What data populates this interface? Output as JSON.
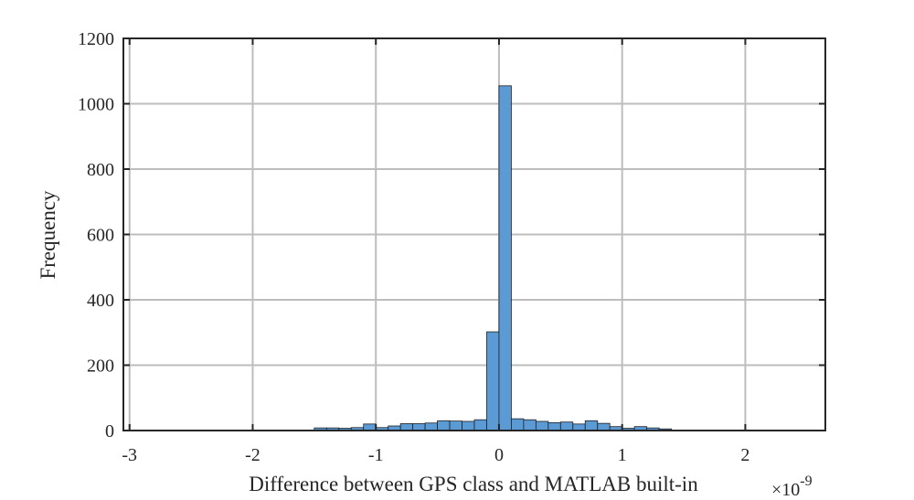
{
  "chart_data": {
    "type": "bar",
    "title": "",
    "xlabel": "Difference between GPS class and MATLAB built-in",
    "ylabel": "Frequency",
    "x_exponent_base": "×10",
    "x_exponent_power": "-9",
    "xlim": [
      -3.05,
      2.65
    ],
    "ylim": [
      0,
      1200
    ],
    "grid": true,
    "legend": "none",
    "bar_color": "#5B9BD5",
    "bar_edge_color": "#1f1f1f",
    "bin_width": 0.1,
    "x_ticks": [
      -3,
      -2,
      -1,
      0,
      1,
      2
    ],
    "x_tick_labels": [
      "-3",
      "-2",
      "-1",
      "0",
      "1",
      "2"
    ],
    "y_ticks": [
      0,
      200,
      400,
      600,
      800,
      1000,
      1200
    ],
    "y_tick_labels": [
      "0",
      "200",
      "400",
      "600",
      "800",
      "1000",
      "1200"
    ],
    "bins": [
      {
        "start": -1.5,
        "value": 8
      },
      {
        "start": -1.4,
        "value": 8
      },
      {
        "start": -1.3,
        "value": 7
      },
      {
        "start": -1.2,
        "value": 9
      },
      {
        "start": -1.1,
        "value": 20
      },
      {
        "start": -1.0,
        "value": 9
      },
      {
        "start": -0.9,
        "value": 14
      },
      {
        "start": -0.8,
        "value": 21
      },
      {
        "start": -0.7,
        "value": 21
      },
      {
        "start": -0.6,
        "value": 23
      },
      {
        "start": -0.5,
        "value": 30
      },
      {
        "start": -0.4,
        "value": 29
      },
      {
        "start": -0.3,
        "value": 28
      },
      {
        "start": -0.2,
        "value": 33
      },
      {
        "start": -0.1,
        "value": 302
      },
      {
        "start": 0.0,
        "value": 1055
      },
      {
        "start": 0.1,
        "value": 36
      },
      {
        "start": 0.2,
        "value": 33
      },
      {
        "start": 0.3,
        "value": 28
      },
      {
        "start": 0.4,
        "value": 24
      },
      {
        "start": 0.5,
        "value": 26
      },
      {
        "start": 0.6,
        "value": 20
      },
      {
        "start": 0.7,
        "value": 30
      },
      {
        "start": 0.8,
        "value": 22
      },
      {
        "start": 0.9,
        "value": 12
      },
      {
        "start": 1.0,
        "value": 7
      },
      {
        "start": 1.1,
        "value": 12
      },
      {
        "start": 1.2,
        "value": 8
      },
      {
        "start": 1.3,
        "value": 5
      }
    ]
  }
}
